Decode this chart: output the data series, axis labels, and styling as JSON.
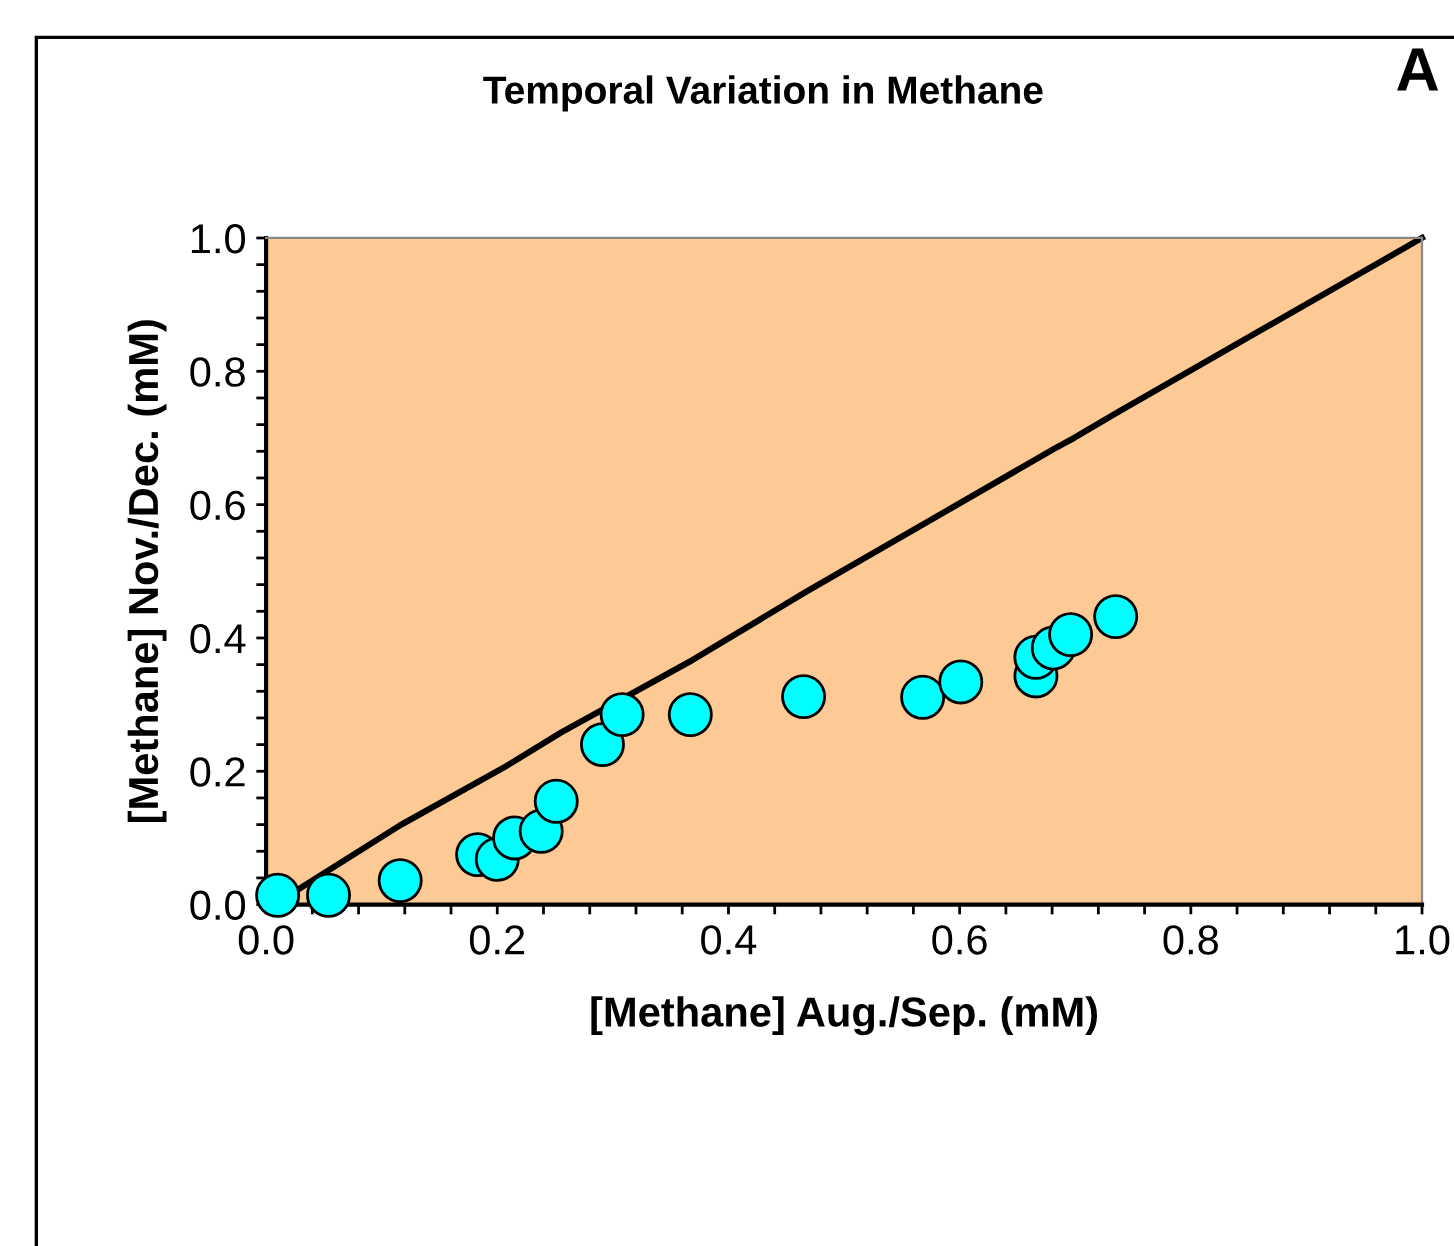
{
  "chart_data": {
    "type": "scatter",
    "title": "Temporal Variation in Methane",
    "xlabel": "[Methane] Aug./Sep. (mM)",
    "ylabel": "[Methane] Nov./Dec. (mM)",
    "annotations": [
      "A"
    ],
    "xlim": [
      0,
      1
    ],
    "ylim": [
      0,
      1
    ],
    "xticks": [
      {
        "value": 0,
        "label": "0.0"
      },
      {
        "value": 0.04,
        "label": null
      },
      {
        "value": 0.08,
        "label": null
      },
      {
        "value": 0.12,
        "label": null
      },
      {
        "value": 0.16,
        "label": null
      },
      {
        "value": 0.2,
        "label": "0.2"
      },
      {
        "value": 0.24,
        "label": null
      },
      {
        "value": 0.28,
        "label": null
      },
      {
        "value": 0.32,
        "label": null
      },
      {
        "value": 0.36,
        "label": null
      },
      {
        "value": 0.4,
        "label": "0.4"
      },
      {
        "value": 0.44,
        "label": null
      },
      {
        "value": 0.48,
        "label": null
      },
      {
        "value": 0.52,
        "label": null
      },
      {
        "value": 0.56,
        "label": null
      },
      {
        "value": 0.6,
        "label": "0.6"
      },
      {
        "value": 0.64,
        "label": null
      },
      {
        "value": 0.68,
        "label": null
      },
      {
        "value": 0.72,
        "label": null
      },
      {
        "value": 0.76,
        "label": null
      },
      {
        "value": 0.8,
        "label": "0.8"
      },
      {
        "value": 0.84,
        "label": null
      },
      {
        "value": 0.88,
        "label": null
      },
      {
        "value": 0.92,
        "label": null
      },
      {
        "value": 0.96,
        "label": null
      },
      {
        "value": 1,
        "label": "1.0"
      }
    ],
    "yticks": [
      {
        "value": 0,
        "label": "0.0"
      },
      {
        "value": 0.04,
        "label": null
      },
      {
        "value": 0.08,
        "label": null
      },
      {
        "value": 0.12,
        "label": null
      },
      {
        "value": 0.16,
        "label": null
      },
      {
        "value": 0.2,
        "label": "0.2"
      },
      {
        "value": 0.24,
        "label": null
      },
      {
        "value": 0.28,
        "label": null
      },
      {
        "value": 0.32,
        "label": null
      },
      {
        "value": 0.36,
        "label": null
      },
      {
        "value": 0.4,
        "label": "0.4"
      },
      {
        "value": 0.44,
        "label": null
      },
      {
        "value": 0.48,
        "label": null
      },
      {
        "value": 0.52,
        "label": null
      },
      {
        "value": 0.56,
        "label": null
      },
      {
        "value": 0.6,
        "label": "0.6"
      },
      {
        "value": 0.64,
        "label": null
      },
      {
        "value": 0.68,
        "label": null
      },
      {
        "value": 0.72,
        "label": null
      },
      {
        "value": 0.76,
        "label": null
      },
      {
        "value": 0.8,
        "label": "0.8"
      },
      {
        "value": 0.84,
        "label": null
      },
      {
        "value": 0.88,
        "label": null
      },
      {
        "value": 0.92,
        "label": null
      },
      {
        "value": 0.96,
        "label": null
      },
      {
        "value": 1,
        "label": "1.0"
      }
    ],
    "grid": false,
    "legend": false,
    "series": [
      {
        "type": "line",
        "color": "#000000",
        "marker": "none",
        "line_style": "solid",
        "x": [
          0.029,
          0.116,
          0.207,
          0.255,
          0.369,
          0.467,
          0.682,
          0.699,
          0.738,
          1.0
        ],
        "values": [
          0.024,
          0.119,
          0.207,
          0.258,
          0.367,
          0.469,
          0.684,
          0.7,
          0.74,
          1.0
        ]
      },
      {
        "color": "#00ffff",
        "marker": "circle",
        "x": [
          0.01,
          0.054,
          0.116,
          0.183,
          0.2,
          0.215,
          0.238,
          0.251,
          0.291,
          0.308,
          0.367,
          0.465,
          0.568,
          0.601,
          0.666,
          0.666,
          0.681,
          0.696,
          0.735
        ],
        "values": [
          0.014,
          0.014,
          0.036,
          0.075,
          0.068,
          0.1,
          0.11,
          0.155,
          0.24,
          0.285,
          0.285,
          0.312,
          0.311,
          0.334,
          0.343,
          0.371,
          0.385,
          0.405,
          0.432
        ]
      }
    ]
  }
}
